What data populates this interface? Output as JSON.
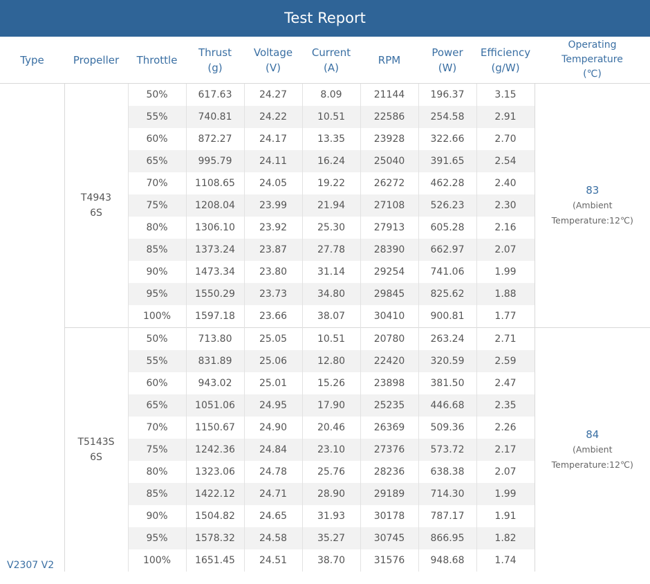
{
  "header": {
    "title": "Test Report"
  },
  "table": {
    "columns": [
      "Type",
      "Propeller",
      "Throttle",
      "Thrust\n(g)",
      "Voltage\n(V)",
      "Current\n(A)",
      "RPM",
      "Power\n(W)",
      "Efficiency\n(g/W)",
      "Operating\nTemperature\n(℃)"
    ],
    "type": "V2307 V2",
    "groups": [
      {
        "propeller": "T4943\n6S",
        "temperature": "83",
        "temperature_note": "(Ambient\nTemperature:12℃)",
        "rows": [
          [
            "50%",
            "617.63",
            "24.27",
            "8.09",
            "21144",
            "196.37",
            "3.15"
          ],
          [
            "55%",
            "740.81",
            "24.22",
            "10.51",
            "22586",
            "254.58",
            "2.91"
          ],
          [
            "60%",
            "872.27",
            "24.17",
            "13.35",
            "23928",
            "322.66",
            "2.70"
          ],
          [
            "65%",
            "995.79",
            "24.11",
            "16.24",
            "25040",
            "391.65",
            "2.54"
          ],
          [
            "70%",
            "1108.65",
            "24.05",
            "19.22",
            "26272",
            "462.28",
            "2.40"
          ],
          [
            "75%",
            "1208.04",
            "23.99",
            "21.94",
            "27108",
            "526.23",
            "2.30"
          ],
          [
            "80%",
            "1306.10",
            "23.92",
            "25.30",
            "27913",
            "605.28",
            "2.16"
          ],
          [
            "85%",
            "1373.24",
            "23.87",
            "27.78",
            "28390",
            "662.97",
            "2.07"
          ],
          [
            "90%",
            "1473.34",
            "23.80",
            "31.14",
            "29254",
            "741.06",
            "1.99"
          ],
          [
            "95%",
            "1550.29",
            "23.73",
            "34.80",
            "29845",
            "825.62",
            "1.88"
          ],
          [
            "100%",
            "1597.18",
            "23.66",
            "38.07",
            "30410",
            "900.81",
            "1.77"
          ]
        ]
      },
      {
        "propeller": "T5143S\n6S",
        "temperature": "84",
        "temperature_note": "(Ambient\nTemperature:12℃)",
        "rows": [
          [
            "50%",
            "713.80",
            "25.05",
            "10.51",
            "20780",
            "263.24",
            "2.71"
          ],
          [
            "55%",
            "831.89",
            "25.06",
            "12.80",
            "22420",
            "320.59",
            "2.59"
          ],
          [
            "60%",
            "943.02",
            "25.01",
            "15.26",
            "23898",
            "381.50",
            "2.47"
          ],
          [
            "65%",
            "1051.06",
            "24.95",
            "17.90",
            "25235",
            "446.68",
            "2.35"
          ],
          [
            "70%",
            "1150.67",
            "24.90",
            "20.46",
            "26369",
            "509.36",
            "2.26"
          ],
          [
            "75%",
            "1242.36",
            "24.84",
            "23.10",
            "27376",
            "573.72",
            "2.17"
          ],
          [
            "80%",
            "1323.06",
            "24.78",
            "25.76",
            "28236",
            "638.38",
            "2.07"
          ],
          [
            "85%",
            "1422.12",
            "24.71",
            "28.90",
            "29189",
            "714.30",
            "1.99"
          ],
          [
            "90%",
            "1504.82",
            "24.65",
            "31.93",
            "30178",
            "787.17",
            "1.91"
          ],
          [
            "95%",
            "1578.32",
            "24.58",
            "35.27",
            "30745",
            "866.95",
            "1.82"
          ],
          [
            "100%",
            "1651.45",
            "24.51",
            "38.70",
            "31576",
            "948.68",
            "1.74"
          ]
        ]
      }
    ]
  }
}
